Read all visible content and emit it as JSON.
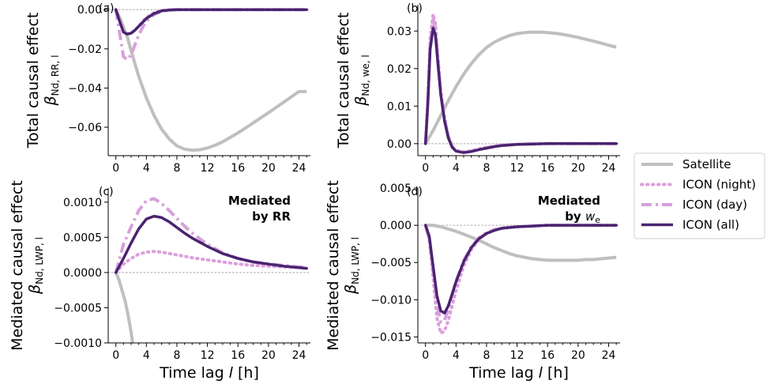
{
  "legend": {
    "entries": [
      {
        "label": "Satellite",
        "color": "#bfbfbf",
        "dash": "solid"
      },
      {
        "label": "ICON (night)",
        "color": "#dd9fdd",
        "dash": "dotted"
      },
      {
        "label": "ICON (day)",
        "color": "#d6a0dc",
        "dash": "dashdot"
      },
      {
        "label": "ICON (all)",
        "color": "#4a2470",
        "dash": "solid"
      }
    ]
  },
  "colors": {
    "satellite": "#bfbfbf",
    "night": "#dd9fdd",
    "day": "#d6a0dc",
    "all": "#4a2470",
    "zero_line": "#c8c8c8"
  },
  "chart_data": [
    {
      "type": "line",
      "panel": "(a)",
      "ylabel_line1": "Total causal effect",
      "ylabel_line2": "β_{N_d, RR, l}",
      "xlabel": "",
      "xlim": [
        -1,
        25.5
      ],
      "ylim": [
        -0.0745,
        0.0025
      ],
      "xticks": [
        0,
        4,
        8,
        12,
        16,
        20,
        24
      ],
      "yticks": [
        0.0,
        -0.02,
        -0.04,
        -0.06
      ],
      "ytick_labels": [
        "0.00",
        "−0.02",
        "−0.04",
        "−0.06"
      ],
      "annotation": "",
      "series": [
        {
          "name": "Satellite",
          "x": [
            0,
            0.5,
            1,
            1.5,
            2,
            3,
            4,
            5,
            6,
            7,
            8,
            9,
            10,
            11,
            12,
            13,
            14,
            15,
            16,
            17,
            18,
            19,
            20,
            21,
            22,
            23,
            24,
            25
          ],
          "y": [
            0,
            -0.004,
            -0.009,
            -0.014,
            -0.021,
            -0.034,
            -0.045,
            -0.054,
            -0.061,
            -0.066,
            -0.0695,
            -0.0712,
            -0.0717,
            -0.0715,
            -0.0706,
            -0.0692,
            -0.0674,
            -0.0652,
            -0.0629,
            -0.0604,
            -0.0578,
            -0.0552,
            -0.0526,
            -0.0499,
            -0.0472,
            -0.0445,
            -0.0418,
            -0.0418
          ]
        },
        {
          "name": "ICON (night)",
          "x": [
            0,
            0.5,
            1,
            1.5,
            2,
            2.5,
            3,
            3.5,
            4,
            5,
            6,
            7,
            8,
            10,
            12,
            16,
            20,
            25
          ],
          "y": [
            0,
            -0.005,
            -0.011,
            -0.0125,
            -0.012,
            -0.0105,
            -0.0085,
            -0.006,
            -0.004,
            -0.0015,
            -0.0004,
            -0.0001,
            0,
            0,
            0,
            0,
            0,
            0
          ]
        },
        {
          "name": "ICON (day)",
          "x": [
            0,
            0.5,
            1,
            1.5,
            2,
            2.5,
            3,
            3.5,
            4,
            4.5,
            5,
            6,
            7,
            8,
            10,
            12,
            16,
            20,
            25
          ],
          "y": [
            0,
            -0.012,
            -0.024,
            -0.0255,
            -0.023,
            -0.018,
            -0.013,
            -0.009,
            -0.006,
            -0.004,
            -0.0025,
            -0.0008,
            -0.0002,
            0,
            0,
            0,
            0,
            0,
            0
          ]
        },
        {
          "name": "ICON (all)",
          "x": [
            0,
            0.5,
            1,
            1.5,
            2,
            2.5,
            3,
            3.5,
            4,
            5,
            6,
            7,
            8,
            10,
            12,
            16,
            20,
            25
          ],
          "y": [
            0,
            -0.006,
            -0.0115,
            -0.0125,
            -0.012,
            -0.0105,
            -0.0085,
            -0.0065,
            -0.0045,
            -0.002,
            -0.0006,
            -0.0002,
            0,
            0,
            0,
            0,
            0,
            0
          ]
        }
      ]
    },
    {
      "type": "line",
      "panel": "(b)",
      "ylabel_line1": "Total causal effect",
      "ylabel_line2": "β_{N_d, w_e, l}",
      "xlabel": "",
      "xlim": [
        -1,
        25.5
      ],
      "ylim": [
        -0.0032,
        0.037
      ],
      "xticks": [
        0,
        4,
        8,
        12,
        16,
        20,
        24
      ],
      "yticks": [
        0.0,
        0.01,
        0.02,
        0.03
      ],
      "ytick_labels": [
        "0.00",
        "0.01",
        "0.02",
        "0.03"
      ],
      "annotation": "",
      "series": [
        {
          "name": "Satellite",
          "x": [
            0,
            1,
            2,
            3,
            4,
            5,
            6,
            7,
            8,
            9,
            10,
            11,
            12,
            13,
            14,
            15,
            16,
            17,
            18,
            19,
            20,
            21,
            22,
            23,
            24,
            25
          ],
          "y": [
            0,
            0.0035,
            0.0075,
            0.0115,
            0.0152,
            0.0185,
            0.0213,
            0.0237,
            0.0256,
            0.027,
            0.028,
            0.0288,
            0.0293,
            0.0296,
            0.0297,
            0.0297,
            0.0296,
            0.0294,
            0.0291,
            0.0287,
            0.0283,
            0.0278,
            0.0273,
            0.0268,
            0.0262,
            0.0257
          ]
        },
        {
          "name": "ICON (night)",
          "x": [
            0,
            0.3,
            0.6,
            1,
            1.3,
            1.6,
            2,
            2.5,
            3,
            3.5,
            4,
            5,
            6,
            7,
            8,
            9,
            10,
            12,
            14,
            16,
            20,
            25
          ],
          "y": [
            0,
            0.012,
            0.028,
            0.0345,
            0.032,
            0.024,
            0.014,
            0.007,
            0.002,
            -0.0008,
            -0.0018,
            -0.0022,
            -0.0019,
            -0.0014,
            -0.001,
            -0.0007,
            -0.0004,
            -0.0002,
            -0.0001,
            0,
            0,
            0
          ]
        },
        {
          "name": "ICON (day)",
          "x": [
            0,
            0.3,
            0.6,
            1,
            1.3,
            1.6,
            2,
            2.5,
            3,
            3.5,
            4,
            5,
            6,
            7,
            8,
            9,
            10,
            12,
            14,
            16,
            20,
            25
          ],
          "y": [
            0,
            0.011,
            0.026,
            0.033,
            0.031,
            0.023,
            0.0135,
            0.0065,
            0.0018,
            -0.0009,
            -0.0019,
            -0.0023,
            -0.002,
            -0.0015,
            -0.0011,
            -0.0008,
            -0.0005,
            -0.0002,
            -0.0001,
            0,
            0,
            0
          ]
        },
        {
          "name": "ICON (all)",
          "x": [
            0,
            0.3,
            0.6,
            1,
            1.3,
            1.6,
            2,
            2.5,
            3,
            3.5,
            4,
            5,
            6,
            7,
            8,
            9,
            10,
            12,
            14,
            16,
            20,
            25
          ],
          "y": [
            0,
            0.0105,
            0.025,
            0.0308,
            0.029,
            0.022,
            0.013,
            0.006,
            0.0015,
            -0.001,
            -0.002,
            -0.0024,
            -0.0021,
            -0.0016,
            -0.0012,
            -0.0008,
            -0.0005,
            -0.0002,
            -0.0001,
            0,
            0,
            0
          ]
        }
      ]
    },
    {
      "type": "line",
      "panel": "(c)",
      "ylabel_line1": "Mediated causal effect",
      "ylabel_line2": "β_{N_d, LWP, l}",
      "xlabel": "Time lag l [h]",
      "xlim": [
        -1,
        25.5
      ],
      "ylim": [
        -0.001,
        0.0012
      ],
      "xticks": [
        0,
        4,
        8,
        12,
        16,
        20,
        24
      ],
      "yticks": [
        -0.001,
        -0.0005,
        0.0,
        0.0005,
        0.001
      ],
      "ytick_labels": [
        "−0.0010",
        "−0.0005",
        "0.0000",
        "0.0005",
        "0.0010"
      ],
      "annotation_line1": "Mediated",
      "annotation_line2": "by RR",
      "series": [
        {
          "name": "Satellite",
          "x": [
            0,
            0.4,
            0.8,
            1.2,
            1.6,
            2,
            2.2
          ],
          "y": [
            0,
            -0.0001,
            -0.00025,
            -0.0004,
            -0.0006,
            -0.00085,
            -0.001
          ]
        },
        {
          "name": "ICON (night)",
          "x": [
            0,
            0.5,
            1,
            2,
            3,
            4,
            5,
            6,
            7,
            8,
            10,
            12,
            14,
            16,
            18,
            20,
            22,
            24,
            25
          ],
          "y": [
            0,
            6e-05,
            0.00012,
            0.0002,
            0.00026,
            0.00029,
            0.0003,
            0.00029,
            0.00027,
            0.00025,
            0.00021,
            0.00018,
            0.00015,
            0.00012,
            0.0001,
            9e-05,
            8e-05,
            7e-05,
            6e-05
          ]
        },
        {
          "name": "ICON (day)",
          "x": [
            0,
            0.5,
            1,
            2,
            3,
            4,
            5,
            6,
            7,
            8,
            9,
            10,
            12,
            14,
            16,
            18,
            20,
            22,
            24,
            25
          ],
          "y": [
            0,
            0.0002,
            0.0004,
            0.00065,
            0.00088,
            0.00102,
            0.00105,
            0.00098,
            0.00088,
            0.00077,
            0.00066,
            0.00056,
            0.0004,
            0.00028,
            0.0002,
            0.00015,
            0.00012,
            0.0001,
            8e-05,
            7e-05
          ]
        },
        {
          "name": "ICON (all)",
          "x": [
            0,
            0.5,
            1,
            2,
            3,
            4,
            5,
            6,
            7,
            8,
            9,
            10,
            12,
            14,
            16,
            18,
            20,
            22,
            24,
            25
          ],
          "y": [
            0,
            0.0001,
            0.0002,
            0.00042,
            0.00062,
            0.00076,
            0.0008,
            0.00078,
            0.00072,
            0.00064,
            0.00056,
            0.00049,
            0.00037,
            0.00027,
            0.0002,
            0.00015,
            0.00012,
            9e-05,
            7e-05,
            6e-05
          ]
        }
      ]
    },
    {
      "type": "line",
      "panel": "(d)",
      "ylabel_line1": "Mediated causal effect",
      "ylabel_line2": "β_{N_d, LWP, l}",
      "xlabel": "Time lag l [h]",
      "xlim": [
        -1,
        25.5
      ],
      "ylim": [
        -0.0158,
        0.005
      ],
      "xticks": [
        0,
        4,
        8,
        12,
        16,
        20,
        24
      ],
      "yticks": [
        0.005,
        0.0,
        -0.005,
        -0.01,
        -0.015
      ],
      "ytick_labels": [
        "0.005",
        "0.000",
        "−0.005",
        "−0.010",
        "−0.015"
      ],
      "annotation_line1": "Mediated",
      "annotation_line2": "by w_e",
      "series": [
        {
          "name": "Satellite",
          "x": [
            0,
            1,
            2,
            3,
            4,
            5,
            6,
            7,
            8,
            9,
            10,
            11,
            12,
            13,
            14,
            15,
            16,
            17,
            18,
            19,
            20,
            21,
            22,
            23,
            24,
            25
          ],
          "y": [
            0,
            0,
            -0.0002,
            -0.0005,
            -0.0008,
            -0.0012,
            -0.0016,
            -0.002,
            -0.0025,
            -0.003,
            -0.0034,
            -0.0038,
            -0.0041,
            -0.0043,
            -0.0045,
            -0.0046,
            -0.0047,
            -0.0047,
            -0.0047,
            -0.0047,
            -0.0047,
            -0.0046,
            -0.0046,
            -0.0045,
            -0.0044,
            -0.0043
          ]
        },
        {
          "name": "ICON (night)",
          "x": [
            0,
            0.5,
            1,
            1.5,
            2,
            2.5,
            3,
            3.5,
            4,
            5,
            6,
            7,
            8,
            9,
            10,
            12,
            14,
            16,
            20,
            25
          ],
          "y": [
            0,
            -0.002,
            -0.007,
            -0.0125,
            -0.0145,
            -0.0142,
            -0.0128,
            -0.0108,
            -0.0088,
            -0.0055,
            -0.0033,
            -0.0019,
            -0.0011,
            -0.0006,
            -0.0004,
            -0.0002,
            -0.0001,
            0,
            0,
            0
          ]
        },
        {
          "name": "ICON (day)",
          "x": [
            0,
            0.5,
            1,
            1.5,
            2,
            2.5,
            3,
            3.5,
            4,
            5,
            6,
            7,
            8,
            9,
            10,
            12,
            14,
            16,
            20,
            25
          ],
          "y": [
            0,
            -0.002,
            -0.006,
            -0.0105,
            -0.013,
            -0.0128,
            -0.0112,
            -0.0093,
            -0.0075,
            -0.0047,
            -0.0029,
            -0.0017,
            -0.001,
            -0.0006,
            -0.0004,
            -0.0002,
            -0.0001,
            0,
            0,
            0
          ]
        },
        {
          "name": "ICON (all)",
          "x": [
            0,
            0.5,
            1,
            1.5,
            2,
            2.5,
            3,
            3.5,
            4,
            5,
            6,
            7,
            8,
            9,
            10,
            12,
            14,
            16,
            20,
            25
          ],
          "y": [
            0,
            -0.0015,
            -0.0055,
            -0.0095,
            -0.0115,
            -0.0118,
            -0.0108,
            -0.0092,
            -0.0076,
            -0.0049,
            -0.003,
            -0.0018,
            -0.0011,
            -0.0007,
            -0.0004,
            -0.0002,
            -0.0001,
            0,
            0,
            0
          ]
        }
      ]
    }
  ]
}
